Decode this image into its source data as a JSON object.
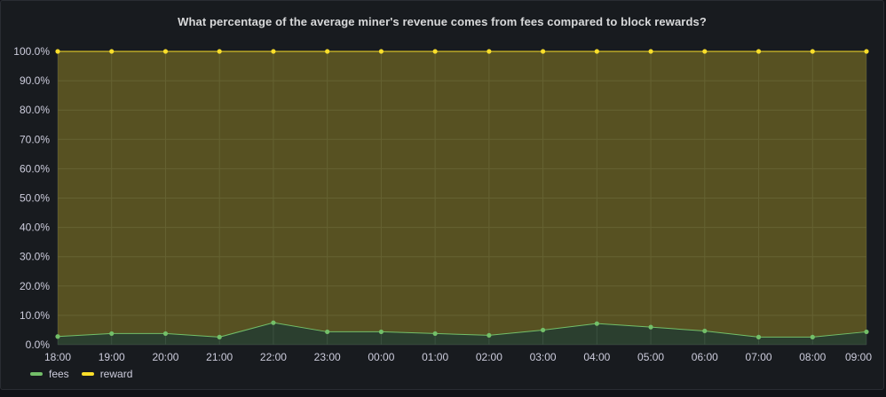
{
  "panel": {
    "title": "What percentage of the average miner's revenue comes from fees compared to block rewards?"
  },
  "legend": {
    "fees_label": "fees",
    "reward_label": "reward"
  },
  "colors": {
    "fees": "#73bf69",
    "reward": "#fade2a",
    "grid": "#2c3235",
    "text": "#ccccdc"
  },
  "chart_data": {
    "type": "area",
    "title": "What percentage of the average miner's revenue comes from fees compared to block rewards?",
    "x": [
      "18:00",
      "19:00",
      "20:00",
      "21:00",
      "22:00",
      "23:00",
      "00:00",
      "01:00",
      "02:00",
      "03:00",
      "04:00",
      "05:00",
      "06:00",
      "07:00",
      "08:00",
      "09:00"
    ],
    "y_ticks": [
      "0.0%",
      "10.0%",
      "20.0%",
      "30.0%",
      "40.0%",
      "50.0%",
      "60.0%",
      "70.0%",
      "80.0%",
      "90.0%",
      "100.0%"
    ],
    "ylim": [
      0,
      100
    ],
    "stacked": true,
    "grid": true,
    "legend_position": "bottom-left",
    "series": [
      {
        "name": "fees",
        "color": "#73bf69",
        "values": [
          2.8,
          3.8,
          3.8,
          2.6,
          7.5,
          4.4,
          4.4,
          3.8,
          3.2,
          5.0,
          7.2,
          6.0,
          4.7,
          2.6,
          2.6,
          4.4
        ]
      },
      {
        "name": "reward",
        "color": "#fade2a",
        "values": [
          97.2,
          96.2,
          96.2,
          97.4,
          92.5,
          95.6,
          95.6,
          96.2,
          96.8,
          95.0,
          92.8,
          94.0,
          95.3,
          97.4,
          97.4,
          95.6
        ]
      }
    ]
  }
}
